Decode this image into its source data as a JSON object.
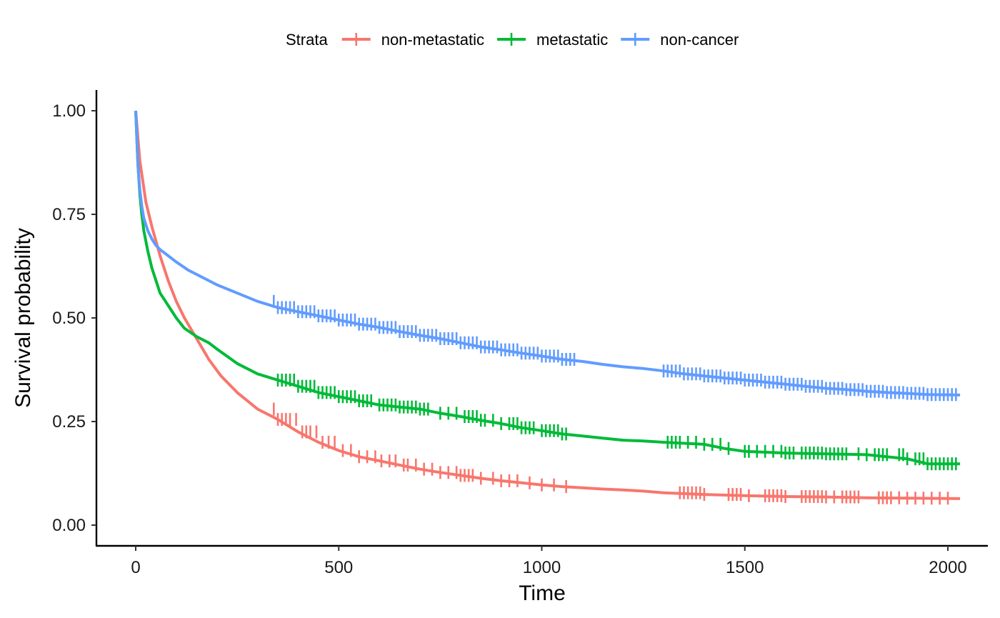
{
  "chart_data": {
    "type": "line",
    "xlabel": "Time",
    "ylabel": "Survival probability",
    "xlim": [
      0,
      2040
    ],
    "ylim": [
      0,
      1
    ],
    "x_ticks": [
      0,
      500,
      1000,
      1500,
      2000
    ],
    "x_tick_labels": [
      "0",
      "500",
      "1000",
      "1500",
      "2000"
    ],
    "y_ticks": [
      0,
      0.25,
      0.5,
      0.75,
      1
    ],
    "y_tick_labels": [
      "0.00",
      "0.25",
      "0.50",
      "0.75",
      "1.00"
    ],
    "grid": false,
    "legend": {
      "title": "Strata",
      "position": "top"
    },
    "series": [
      {
        "name": "non-metastatic",
        "color": "#F8766D",
        "x": [
          0,
          10,
          25,
          40,
          60,
          80,
          100,
          120,
          150,
          180,
          210,
          250,
          300,
          350,
          400,
          450,
          500,
          550,
          600,
          650,
          700,
          750,
          800,
          850,
          900,
          950,
          1000,
          1050,
          1100,
          1150,
          1200,
          1250,
          1300,
          1400,
          1500,
          1600,
          1700,
          1800,
          1900,
          2030
        ],
        "y": [
          1.0,
          0.88,
          0.78,
          0.72,
          0.65,
          0.59,
          0.54,
          0.5,
          0.45,
          0.4,
          0.36,
          0.32,
          0.28,
          0.255,
          0.225,
          0.2,
          0.18,
          0.165,
          0.155,
          0.145,
          0.135,
          0.127,
          0.12,
          0.113,
          0.107,
          0.102,
          0.097,
          0.093,
          0.09,
          0.087,
          0.085,
          0.082,
          0.078,
          0.074,
          0.071,
          0.069,
          0.068,
          0.066,
          0.065,
          0.064
        ],
        "censor_x": [
          340,
          350,
          360,
          370,
          380,
          395,
          410,
          420,
          430,
          445,
          460,
          475,
          490,
          510,
          530,
          550,
          570,
          590,
          605,
          625,
          640,
          660,
          670,
          690,
          710,
          730,
          750,
          770,
          790,
          800,
          810,
          820,
          830,
          850,
          880,
          900,
          920,
          940,
          970,
          1000,
          1030,
          1060,
          1340,
          1350,
          1360,
          1370,
          1380,
          1390,
          1400,
          1460,
          1470,
          1480,
          1490,
          1510,
          1550,
          1560,
          1570,
          1580,
          1590,
          1600,
          1640,
          1650,
          1660,
          1670,
          1680,
          1690,
          1700,
          1720,
          1740,
          1750,
          1760,
          1770,
          1780,
          1830,
          1840,
          1850,
          1860,
          1880,
          1900,
          1920,
          1940,
          1960,
          1980,
          2000
        ]
      },
      {
        "name": "metastatic",
        "color": "#00BA38",
        "x": [
          0,
          5,
          10,
          15,
          20,
          30,
          40,
          50,
          60,
          80,
          100,
          120,
          150,
          180,
          200,
          250,
          300,
          350,
          400,
          450,
          500,
          550,
          600,
          650,
          700,
          750,
          800,
          850,
          900,
          950,
          1000,
          1050,
          1100,
          1150,
          1200,
          1250,
          1300,
          1400,
          1450,
          1500,
          1600,
          1700,
          1800,
          1900,
          1950,
          2030
        ],
        "y": [
          1.0,
          0.88,
          0.8,
          0.75,
          0.71,
          0.66,
          0.62,
          0.59,
          0.56,
          0.53,
          0.5,
          0.475,
          0.455,
          0.44,
          0.425,
          0.39,
          0.365,
          0.35,
          0.335,
          0.32,
          0.31,
          0.3,
          0.29,
          0.285,
          0.28,
          0.27,
          0.262,
          0.253,
          0.245,
          0.235,
          0.228,
          0.22,
          0.215,
          0.21,
          0.205,
          0.203,
          0.2,
          0.195,
          0.185,
          0.178,
          0.174,
          0.172,
          0.17,
          0.16,
          0.148,
          0.148
        ],
        "censor_x": [
          350,
          360,
          370,
          380,
          390,
          400,
          410,
          420,
          430,
          440,
          450,
          460,
          470,
          480,
          490,
          500,
          510,
          520,
          530,
          540,
          550,
          560,
          570,
          580,
          600,
          610,
          620,
          630,
          640,
          650,
          660,
          670,
          680,
          690,
          700,
          710,
          720,
          750,
          770,
          790,
          810,
          820,
          830,
          840,
          850,
          860,
          880,
          900,
          920,
          930,
          940,
          950,
          960,
          970,
          980,
          1000,
          1010,
          1020,
          1030,
          1040,
          1050,
          1060,
          1310,
          1320,
          1330,
          1340,
          1360,
          1380,
          1400,
          1420,
          1440,
          1460,
          1500,
          1510,
          1530,
          1550,
          1570,
          1590,
          1600,
          1610,
          1620,
          1640,
          1650,
          1660,
          1670,
          1680,
          1690,
          1700,
          1710,
          1720,
          1730,
          1740,
          1750,
          1780,
          1800,
          1820,
          1830,
          1840,
          1850,
          1880,
          1890,
          1900,
          1920,
          1930,
          1940,
          1950,
          1960,
          1970,
          1980,
          1990,
          2000,
          2010,
          2020
        ]
      },
      {
        "name": "non-cancer",
        "color": "#619CFF",
        "x": [
          0,
          3,
          6,
          10,
          15,
          20,
          30,
          40,
          50,
          60,
          80,
          100,
          130,
          160,
          200,
          250,
          300,
          350,
          400,
          450,
          500,
          550,
          600,
          650,
          700,
          750,
          800,
          850,
          900,
          950,
          1000,
          1050,
          1100,
          1150,
          1200,
          1250,
          1300,
          1350,
          1400,
          1450,
          1500,
          1550,
          1600,
          1650,
          1700,
          1750,
          1800,
          1850,
          1900,
          1950,
          2030
        ],
        "y": [
          1.0,
          0.93,
          0.86,
          0.81,
          0.77,
          0.74,
          0.71,
          0.69,
          0.675,
          0.665,
          0.65,
          0.635,
          0.615,
          0.6,
          0.58,
          0.56,
          0.54,
          0.525,
          0.515,
          0.505,
          0.495,
          0.485,
          0.477,
          0.467,
          0.458,
          0.45,
          0.44,
          0.43,
          0.423,
          0.415,
          0.408,
          0.4,
          0.395,
          0.388,
          0.382,
          0.378,
          0.372,
          0.365,
          0.36,
          0.355,
          0.35,
          0.345,
          0.34,
          0.335,
          0.33,
          0.327,
          0.323,
          0.32,
          0.318,
          0.315,
          0.314
        ],
        "censor_x": [
          340,
          350,
          360,
          370,
          380,
          390,
          400,
          410,
          420,
          430,
          440,
          450,
          460,
          470,
          480,
          490,
          500,
          510,
          520,
          530,
          540,
          550,
          560,
          570,
          580,
          590,
          600,
          610,
          620,
          630,
          640,
          650,
          660,
          670,
          680,
          690,
          700,
          710,
          720,
          730,
          740,
          750,
          760,
          770,
          780,
          790,
          800,
          810,
          820,
          830,
          840,
          850,
          860,
          870,
          880,
          890,
          900,
          910,
          920,
          930,
          940,
          950,
          960,
          970,
          980,
          990,
          1000,
          1010,
          1020,
          1030,
          1040,
          1050,
          1060,
          1070,
          1080,
          1300,
          1310,
          1320,
          1330,
          1340,
          1350,
          1360,
          1370,
          1380,
          1390,
          1400,
          1410,
          1420,
          1430,
          1440,
          1450,
          1460,
          1470,
          1480,
          1490,
          1500,
          1510,
          1520,
          1530,
          1540,
          1550,
          1560,
          1570,
          1580,
          1590,
          1600,
          1610,
          1620,
          1630,
          1640,
          1650,
          1660,
          1670,
          1680,
          1690,
          1700,
          1710,
          1720,
          1730,
          1740,
          1750,
          1760,
          1770,
          1780,
          1790,
          1800,
          1810,
          1820,
          1830,
          1840,
          1850,
          1860,
          1870,
          1880,
          1890,
          1900,
          1910,
          1920,
          1930,
          1940,
          1950,
          1960,
          1970,
          1980,
          1990,
          2000,
          2010,
          2020
        ]
      }
    ]
  }
}
